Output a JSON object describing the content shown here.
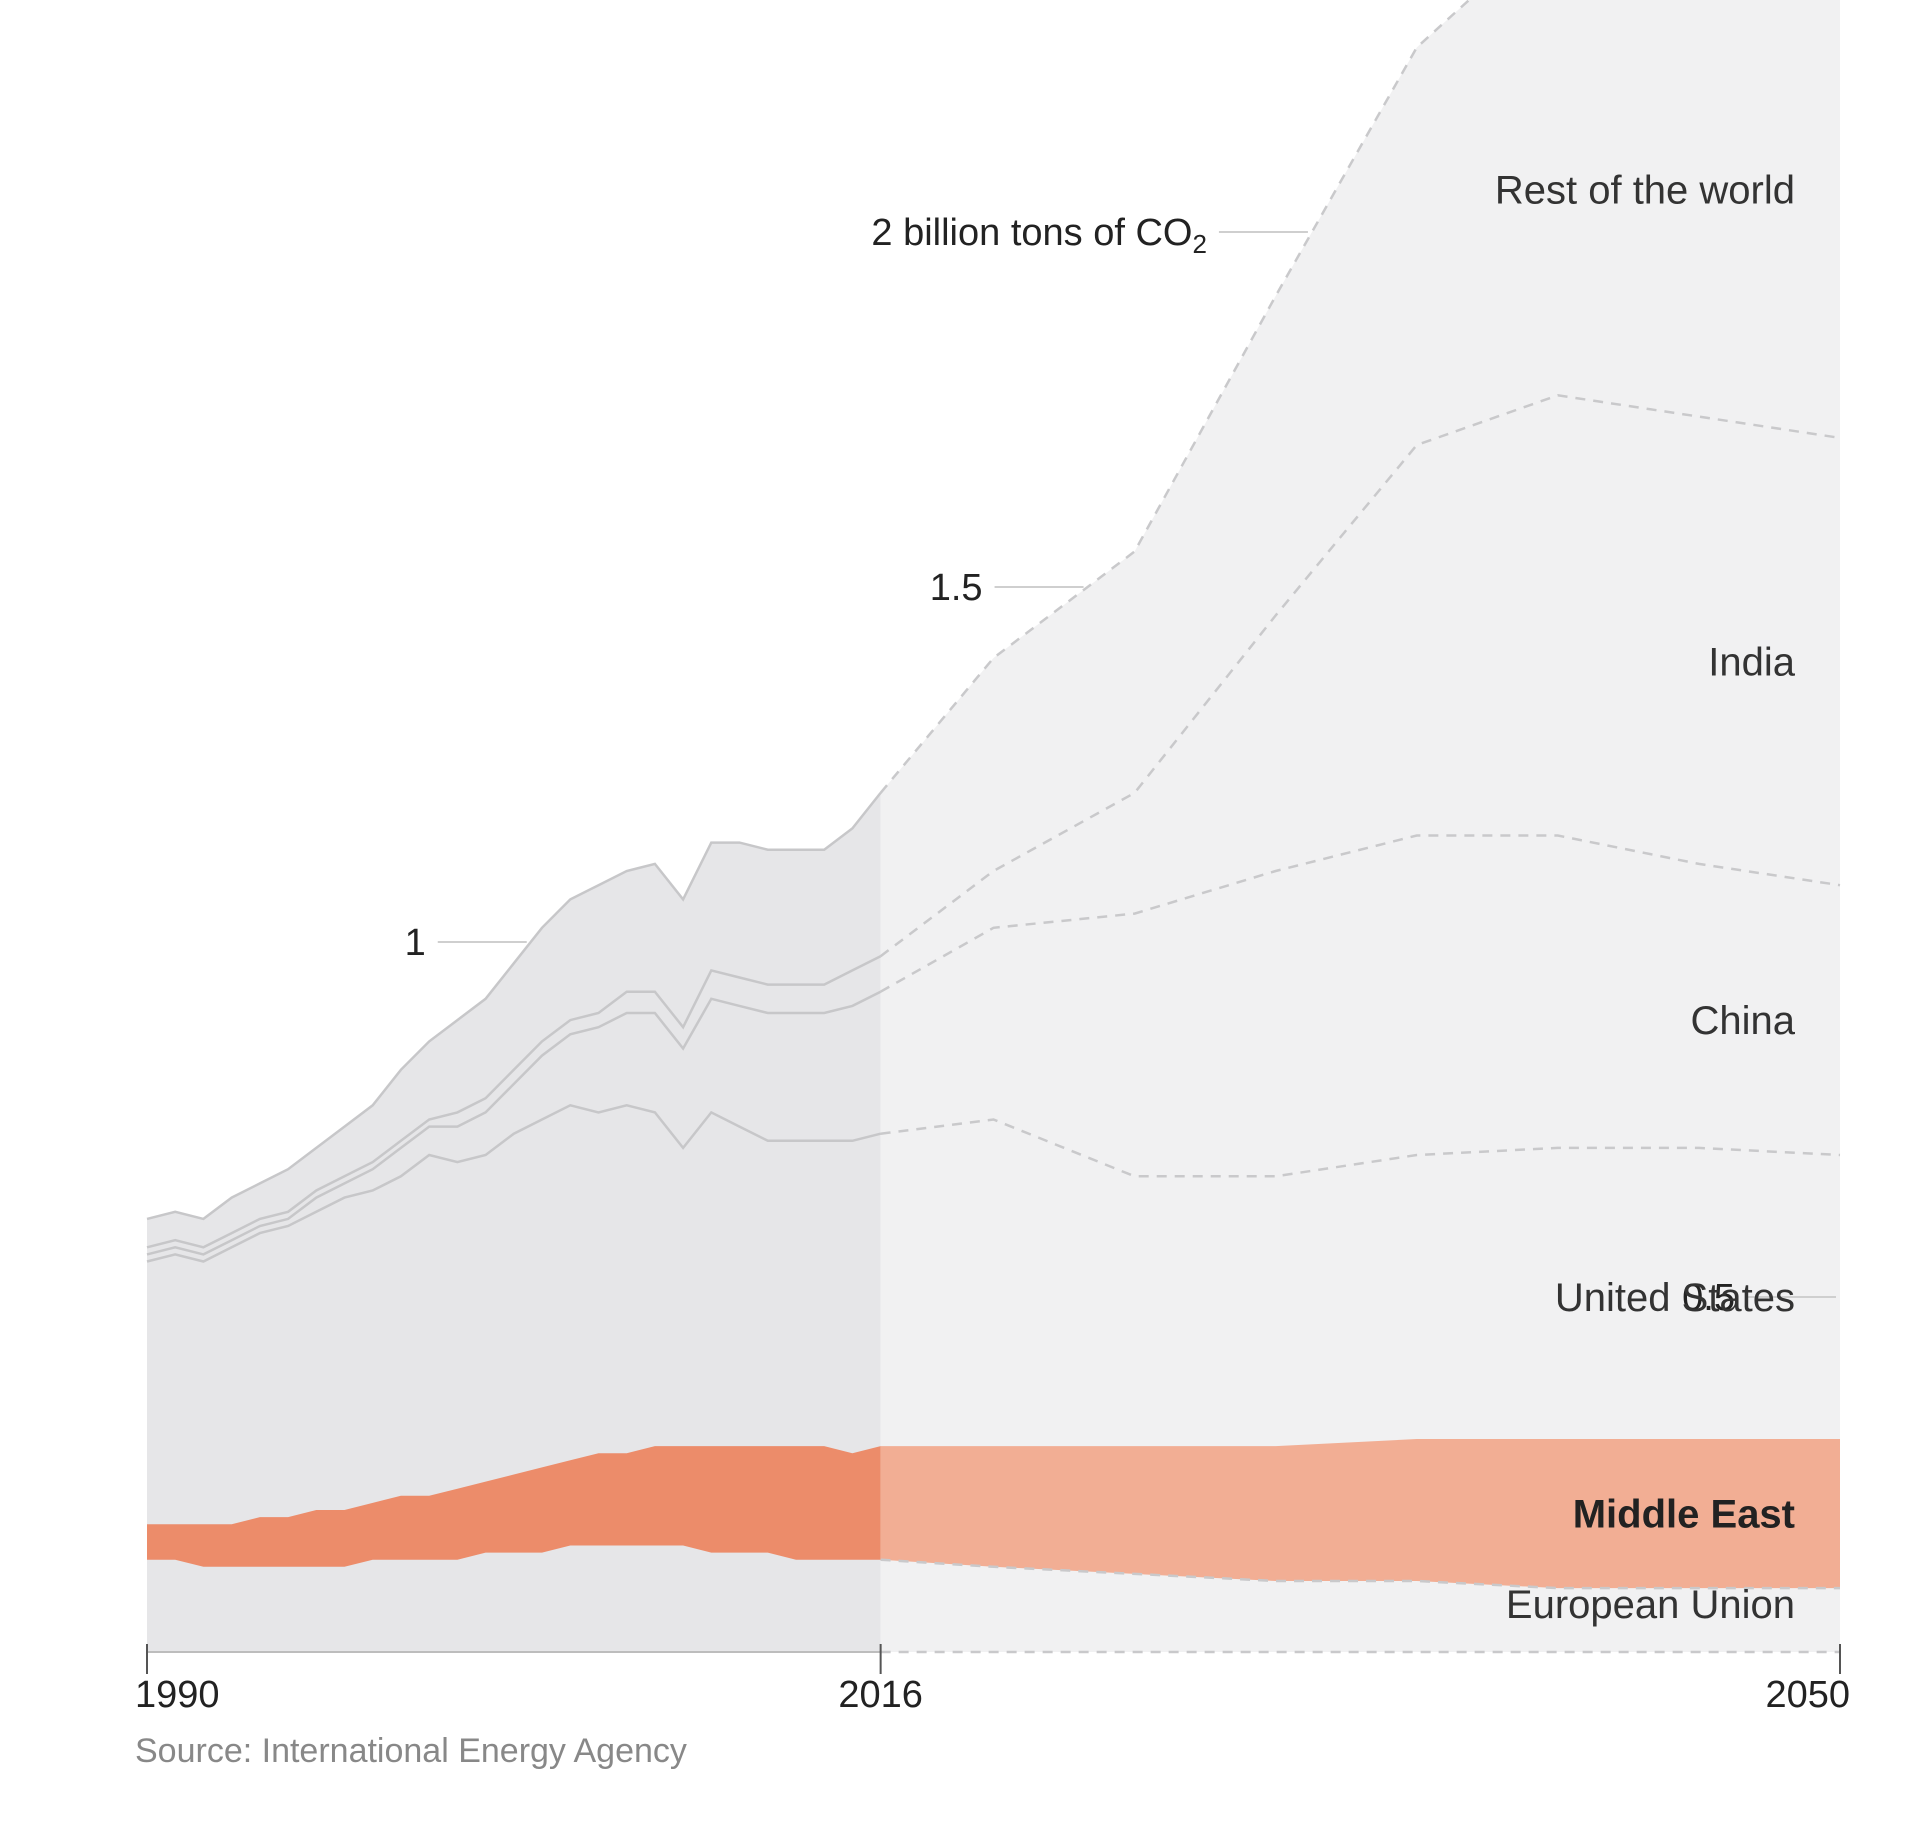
{
  "chart_data": {
    "type": "area",
    "stacked": true,
    "x_unit": "year",
    "xlim": [
      1990,
      2050
    ],
    "ylim": [
      0,
      2.2
    ],
    "projection_start": 2016,
    "x_ticks": [
      "1990",
      "2016",
      "2050"
    ],
    "y_ticks": [
      {
        "value": 0.5,
        "label": "0.5"
      },
      {
        "value": 1,
        "label": "1"
      },
      {
        "value": 1.5,
        "label": "1.5"
      },
      {
        "value": 2,
        "label": "2 billion tons of CO",
        "subscript": "2"
      }
    ],
    "source": "Source: International Energy Agency",
    "highlight_series": "Middle East",
    "colors": {
      "historical_fill": "#e6e6e8",
      "projection_fill": "#f1f1f2",
      "middle_east_historical": "#ec8c6a",
      "middle_east_projection": "#f2ae94",
      "boundary_line": "#c7c7c9",
      "projection_line": "#c9c9cb",
      "axis": "#bdbdbd"
    },
    "x": [
      1990,
      1991,
      1992,
      1993,
      1994,
      1995,
      1996,
      1997,
      1998,
      1999,
      2000,
      2001,
      2002,
      2003,
      2004,
      2005,
      2006,
      2007,
      2008,
      2009,
      2010,
      2011,
      2012,
      2013,
      2014,
      2015,
      2016,
      2020,
      2025,
      2030,
      2035,
      2040,
      2045,
      2050
    ],
    "series": [
      {
        "name": "European Union",
        "values": [
          0.13,
          0.13,
          0.12,
          0.12,
          0.12,
          0.12,
          0.12,
          0.12,
          0.13,
          0.13,
          0.13,
          0.13,
          0.14,
          0.14,
          0.14,
          0.15,
          0.15,
          0.15,
          0.15,
          0.15,
          0.14,
          0.14,
          0.14,
          0.13,
          0.13,
          0.13,
          0.13,
          0.12,
          0.11,
          0.1,
          0.1,
          0.09,
          0.09,
          0.09
        ]
      },
      {
        "name": "Middle East",
        "values": [
          0.05,
          0.05,
          0.06,
          0.06,
          0.07,
          0.07,
          0.08,
          0.08,
          0.08,
          0.09,
          0.09,
          0.1,
          0.1,
          0.11,
          0.12,
          0.12,
          0.13,
          0.13,
          0.14,
          0.14,
          0.15,
          0.15,
          0.15,
          0.16,
          0.16,
          0.15,
          0.16,
          0.17,
          0.18,
          0.19,
          0.2,
          0.21,
          0.21,
          0.21
        ]
      },
      {
        "name": "United States",
        "values": [
          0.37,
          0.38,
          0.37,
          0.39,
          0.4,
          0.41,
          0.42,
          0.44,
          0.44,
          0.45,
          0.48,
          0.46,
          0.46,
          0.48,
          0.49,
          0.5,
          0.48,
          0.49,
          0.47,
          0.42,
          0.47,
          0.45,
          0.43,
          0.43,
          0.43,
          0.44,
          0.44,
          0.46,
          0.38,
          0.38,
          0.4,
          0.41,
          0.41,
          0.4
        ]
      },
      {
        "name": "China",
        "values": [
          0.01,
          0.01,
          0.01,
          0.01,
          0.01,
          0.01,
          0.02,
          0.02,
          0.03,
          0.04,
          0.04,
          0.05,
          0.06,
          0.07,
          0.09,
          0.1,
          0.12,
          0.13,
          0.14,
          0.14,
          0.16,
          0.17,
          0.18,
          0.18,
          0.18,
          0.19,
          0.2,
          0.27,
          0.37,
          0.43,
          0.45,
          0.44,
          0.4,
          0.38
        ]
      },
      {
        "name": "India",
        "values": [
          0.01,
          0.01,
          0.01,
          0.01,
          0.01,
          0.01,
          0.01,
          0.01,
          0.01,
          0.01,
          0.01,
          0.02,
          0.02,
          0.02,
          0.02,
          0.02,
          0.02,
          0.03,
          0.03,
          0.03,
          0.04,
          0.04,
          0.04,
          0.04,
          0.04,
          0.05,
          0.05,
          0.08,
          0.17,
          0.36,
          0.55,
          0.62,
          0.63,
          0.63
        ]
      },
      {
        "name": "Rest of the world",
        "values": [
          0.04,
          0.04,
          0.04,
          0.05,
          0.05,
          0.06,
          0.06,
          0.07,
          0.08,
          0.1,
          0.11,
          0.13,
          0.14,
          0.15,
          0.16,
          0.17,
          0.18,
          0.17,
          0.18,
          0.18,
          0.18,
          0.19,
          0.19,
          0.19,
          0.19,
          0.2,
          0.23,
          0.3,
          0.34,
          0.45,
          0.56,
          0.67,
          0.7,
          0.7
        ]
      }
    ]
  }
}
